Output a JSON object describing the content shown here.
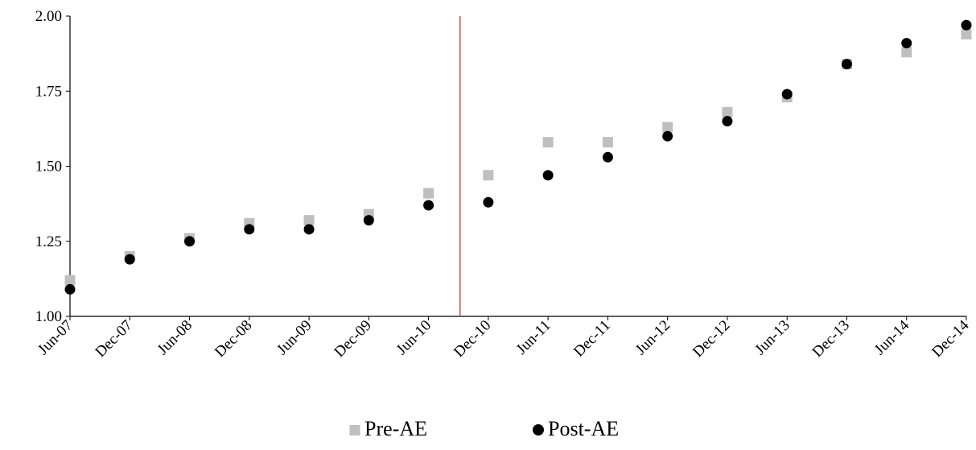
{
  "chart_data": {
    "type": "scatter",
    "title": "",
    "xlabel": "",
    "ylabel": "",
    "x": [
      "Jun-07",
      "Dec-07",
      "Jun-08",
      "Dec-08",
      "Jun-09",
      "Dec-09",
      "Jun-10",
      "Dec-10",
      "Jun-11",
      "Dec-11",
      "Jun-12",
      "Dec-12",
      "Jun-13",
      "Dec-13",
      "Jun-14",
      "Dec-14"
    ],
    "ylim": [
      1.0,
      2.0
    ],
    "yticks": [
      "1.00",
      "1.25",
      "1.50",
      "1.75",
      "2.00"
    ],
    "series": [
      {
        "name": "Pre-AE",
        "marker": "square",
        "color": "#bfbfbf",
        "values": [
          1.12,
          1.2,
          1.26,
          1.31,
          1.32,
          1.34,
          1.41,
          1.47,
          1.58,
          1.58,
          1.63,
          1.68,
          1.73,
          1.84,
          1.88,
          1.94
        ]
      },
      {
        "name": "Post-AE",
        "marker": "circle",
        "color": "#000000",
        "values": [
          1.09,
          1.19,
          1.25,
          1.29,
          1.29,
          1.32,
          1.37,
          1.38,
          1.47,
          1.53,
          1.6,
          1.65,
          1.74,
          1.84,
          1.91,
          1.97
        ]
      }
    ],
    "reference_line": {
      "x_between": [
        "Jun-10",
        "Dec-10"
      ],
      "color": "#c0504d"
    },
    "legend": {
      "position": "bottom"
    },
    "grid": false
  }
}
